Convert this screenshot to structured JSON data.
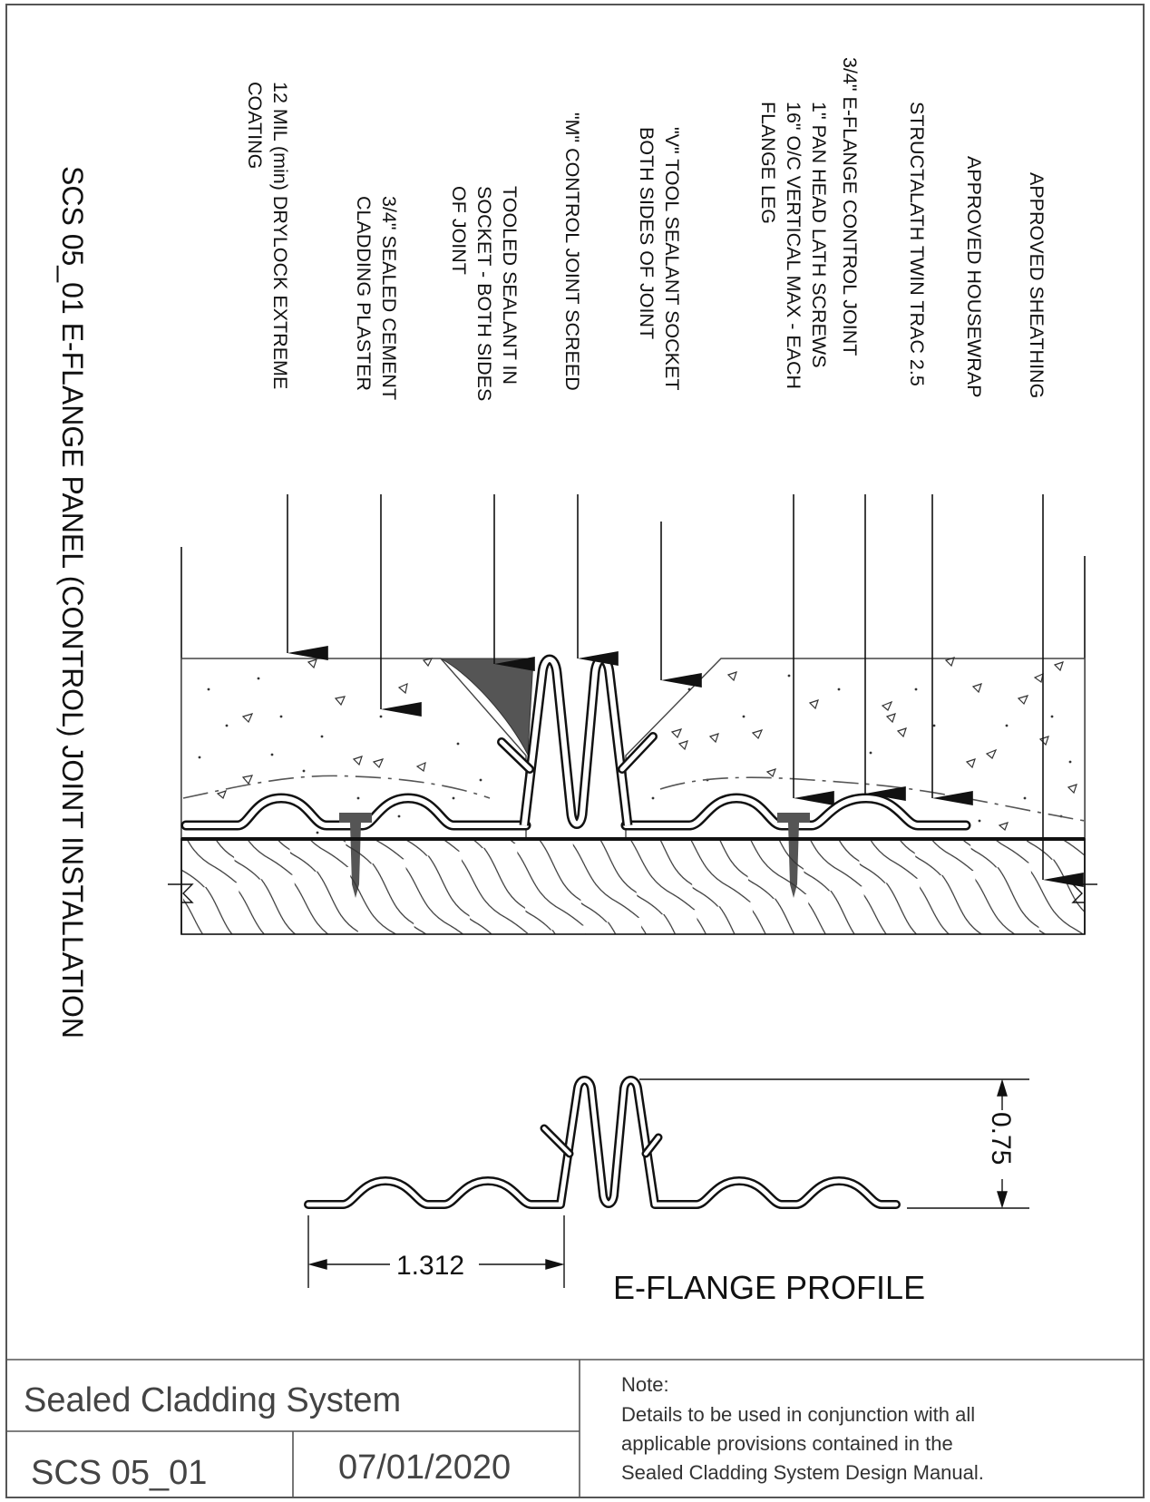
{
  "drawing": {
    "title": "SCS 05_01 E-FLANGE PANEL (CONTROL) JOINT INSTALLATION",
    "profile_title": "E-FLANGE PROFILE",
    "dimension_width": "1.312",
    "dimension_height": "0.75"
  },
  "callouts": [
    {
      "id": "coating",
      "lines": [
        "12 MIL (min) DRYLOCK EXTREME",
        "COATING"
      ]
    },
    {
      "id": "plaster",
      "lines": [
        "3/4\" SEALED CEMENT",
        "CLADDING PLASTER"
      ]
    },
    {
      "id": "sealant",
      "lines": [
        "TOOLED SEALANT IN",
        "SOCKET - BOTH SIDES",
        "OF JOINT"
      ]
    },
    {
      "id": "screed",
      "lines": [
        "\"M\" CONTROL JOINT SCREED"
      ]
    },
    {
      "id": "socket",
      "lines": [
        "\"V\" TOOL SEALANT SOCKET",
        "BOTH SIDES OF JOINT"
      ]
    },
    {
      "id": "screws",
      "lines": [
        "1\" PAN HEAD LATH SCREWS",
        "16\" O/C VERTICAL MAX - EACH",
        "FLANGE LEG"
      ]
    },
    {
      "id": "control-joint",
      "lines": [
        "3/4\" E-FLANGE CONTROL JOINT"
      ]
    },
    {
      "id": "lath",
      "lines": [
        "STRUCTALATH TWIN TRAC 2.5"
      ]
    },
    {
      "id": "housewrap",
      "lines": [
        "APPROVED HOUSEWRAP"
      ]
    },
    {
      "id": "sheathing",
      "lines": [
        "APPROVED SHEATHING"
      ]
    }
  ],
  "title_block": {
    "system_name": "Sealed Cladding System",
    "drawing_number": "SCS 05_01",
    "date": "07/01/2020",
    "note_heading": "Note:",
    "note_lines": [
      "Details to be used in conjunction with all",
      "applicable provisions contained in the",
      "Sealed Cladding System Design Manual."
    ]
  }
}
